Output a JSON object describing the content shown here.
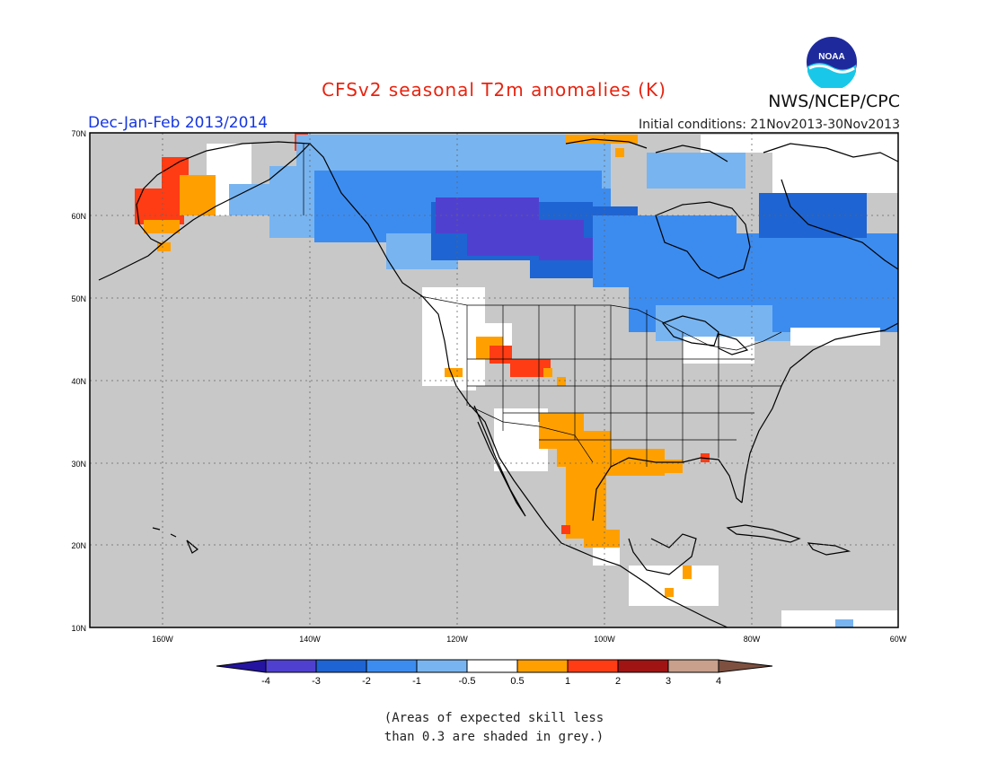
{
  "header": {
    "title": "CFSv2 seasonal T2m anomalies (K)",
    "period": "Dec-Jan-Feb 2013/2014",
    "initial_conditions": "Initial conditions: 21Nov2013-30Nov2013",
    "organization": "NWS/NCEP/CPC",
    "logo_text": "NOAA"
  },
  "map": {
    "lat_labels": [
      "70N",
      "60N",
      "50N",
      "40N",
      "30N",
      "20N",
      "10N"
    ],
    "lon_labels": [
      "160W",
      "140W",
      "120W",
      "100W",
      "80W",
      "60W"
    ],
    "background_color": "#c8c8c8",
    "grid": "dotted",
    "coast_color": "#000000"
  },
  "colorbar": {
    "labels": [
      "-4",
      "-3",
      "-2",
      "-1",
      "-0.5",
      "0.5",
      "1",
      "2",
      "3",
      "4"
    ],
    "colors": [
      "#2414a0",
      "#5040d0",
      "#1e64d2",
      "#3c8cf0",
      "#78b4f0",
      "#ffffff",
      "#ffa000",
      "#ff3c14",
      "#a01414",
      "#c8a08c",
      "#7d5040"
    ]
  },
  "note": [
    "(Areas of expected skill less",
    "than 0.3 are shaded in grey.)"
  ]
}
